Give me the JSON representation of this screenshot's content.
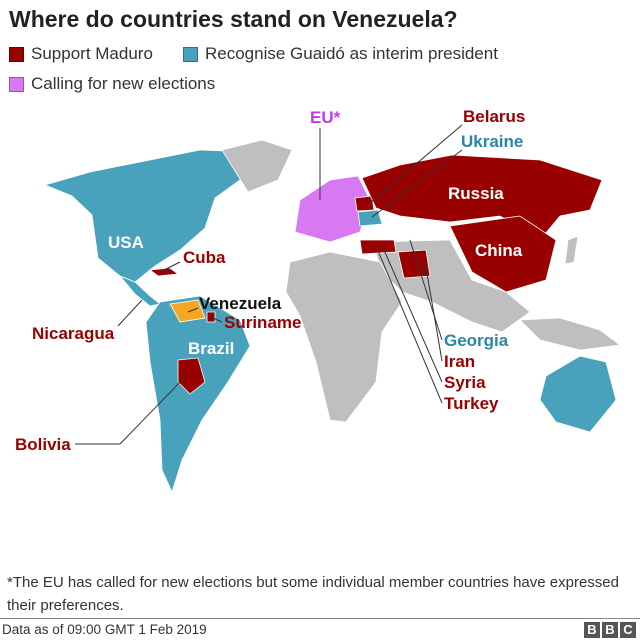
{
  "title": "Where do countries stand on Venezuela?",
  "legend": [
    {
      "label": "Support Maduro",
      "color": "#990000"
    },
    {
      "label": "Recognise Guaidó as interim president",
      "color": "#48a2bb"
    },
    {
      "label": "Calling for new elections",
      "color": "#d679f3"
    }
  ],
  "labels": {
    "eu": "EU*",
    "belarus": "Belarus",
    "ukraine": "Ukraine",
    "russia": "Russia",
    "china": "China",
    "usa": "USA",
    "cuba": "Cuba",
    "venezuela": "Venezuela",
    "suriname": "Suriname",
    "nicaragua": "Nicaragua",
    "brazil": "Brazil",
    "bolivia": "Bolivia",
    "georgia": "Georgia",
    "iran": "Iran",
    "syria": "Syria",
    "turkey": "Turkey"
  },
  "footnote": "*The EU has called for new elections but some individual member countries have expressed their preferences.",
  "source": "Data as of 09:00 GMT 1 Feb 2019",
  "logo": [
    "B",
    "B",
    "C"
  ]
}
